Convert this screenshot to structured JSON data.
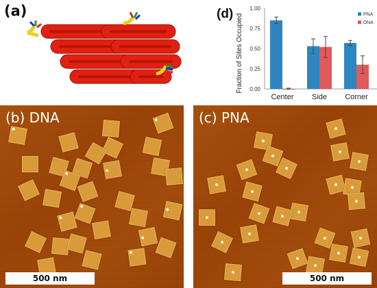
{
  "panel_a": {
    "label": "(a)"
  },
  "panel_b": {
    "label": "(b) DNA",
    "scale": "500 nm"
  },
  "panel_c": {
    "label": "(c) PNA",
    "scale": "500 nm"
  },
  "colors": {
    "pna": "#2e86c1",
    "dna": "#e05a5a",
    "origami": "#e02010",
    "afm_bg": "#a04a0a",
    "afm_tile": "#d99a3a"
  },
  "chart_data": {
    "type": "bar",
    "label": "(d)",
    "categories": [
      "Center",
      "Side",
      "Corner"
    ],
    "series": [
      {
        "name": "PNA",
        "values": [
          0.85,
          0.53,
          0.57
        ],
        "errors": [
          0.04,
          0.09,
          0.03
        ]
      },
      {
        "name": "DNA",
        "values": [
          0.0,
          0.52,
          0.3
        ],
        "errors": [
          0.01,
          0.13,
          0.11
        ]
      }
    ],
    "ylabel": "Fraction of Sites Occupied",
    "ylim": [
      0,
      1
    ],
    "yticks": [
      "0.00",
      "0.25",
      "0.50",
      "0.75",
      "1.00"
    ],
    "legend": "top-right"
  }
}
